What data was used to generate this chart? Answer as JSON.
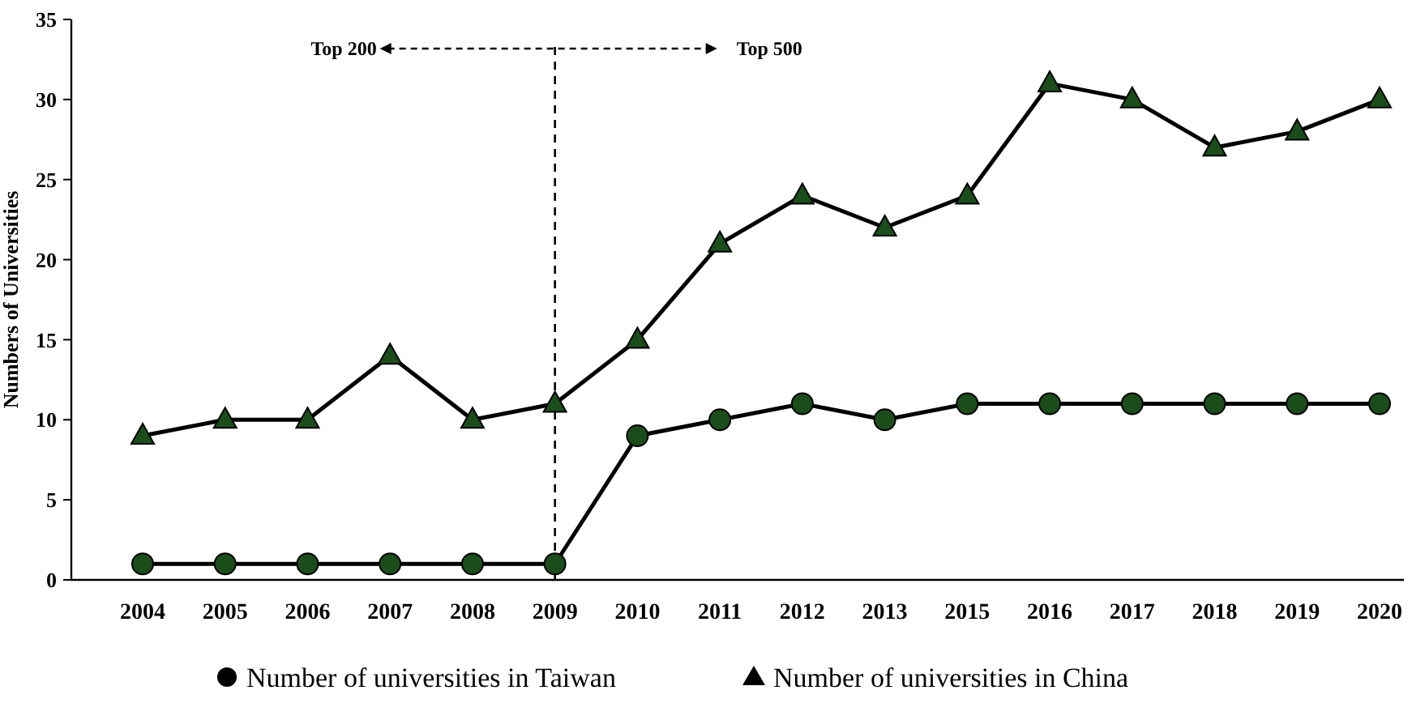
{
  "chart_data": {
    "type": "line",
    "ylabel": "Numbers of Universities",
    "categories": [
      "2004",
      "2005",
      "2006",
      "2007",
      "2008",
      "2009",
      "2010",
      "2011",
      "2012",
      "2013",
      "2015",
      "2016",
      "2017",
      "2018",
      "2019",
      "2020"
    ],
    "series": [
      {
        "name": "Number of universities in Taiwan",
        "color": "#1b4d1b",
        "marker": "circle",
        "values": [
          1,
          1,
          1,
          1,
          1,
          1,
          9,
          10,
          11,
          10,
          11,
          11,
          11,
          11,
          11,
          11
        ]
      },
      {
        "name": "Number of universities in China",
        "color": "#1b4d1b",
        "marker": "triangle",
        "values": [
          9,
          10,
          10,
          14,
          10,
          11,
          15,
          21,
          24,
          22,
          24,
          31,
          30,
          27,
          28,
          30
        ]
      }
    ],
    "ylim": [
      0,
      35
    ],
    "yticks": [
      0,
      5,
      10,
      15,
      20,
      25,
      30,
      35
    ],
    "grid": false,
    "legend": "bottom",
    "line_style": "solid",
    "ref_lines": [
      {
        "axis": "x",
        "value": "2009",
        "line_style": "dashed"
      }
    ],
    "annotations": [
      "Top 200",
      "Top 500"
    ]
  }
}
